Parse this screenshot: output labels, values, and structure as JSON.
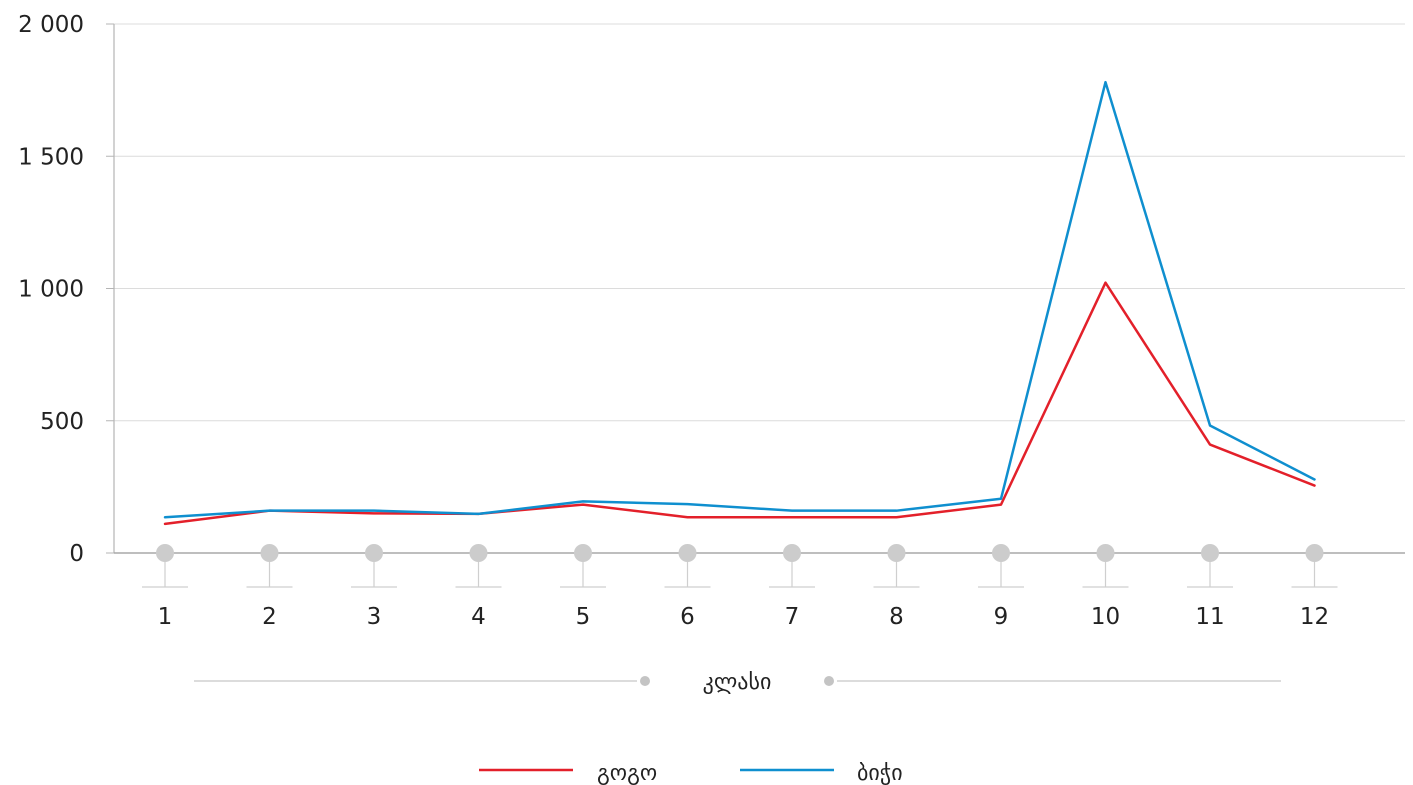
{
  "chart_data": {
    "type": "line",
    "title": "",
    "xlabel": "კლასი",
    "ylabel": "",
    "x": [
      1,
      2,
      3,
      4,
      5,
      6,
      7,
      8,
      9,
      10,
      11,
      12
    ],
    "x_tick_labels": [
      "1",
      "2",
      "3",
      "4",
      "5",
      "6",
      "7",
      "8",
      "9",
      "10",
      "11",
      "12"
    ],
    "ylim": [
      0,
      2000
    ],
    "y_ticks": [
      0,
      500,
      1000,
      1500,
      2000
    ],
    "y_tick_labels": [
      "0",
      "500",
      "1 000",
      "1 500",
      "2 000"
    ],
    "grid": true,
    "legend_position": "bottom-center",
    "series": [
      {
        "name": "გოგო",
        "color": "#e3202a",
        "values": [
          110,
          160,
          150,
          148,
          183,
          135,
          135,
          135,
          183,
          1022,
          410,
          255
        ]
      },
      {
        "name": "ბიჭი",
        "color": "#0f8fcf",
        "values": [
          135,
          160,
          160,
          148,
          195,
          185,
          160,
          160,
          205,
          1780,
          482,
          278
        ]
      }
    ]
  }
}
